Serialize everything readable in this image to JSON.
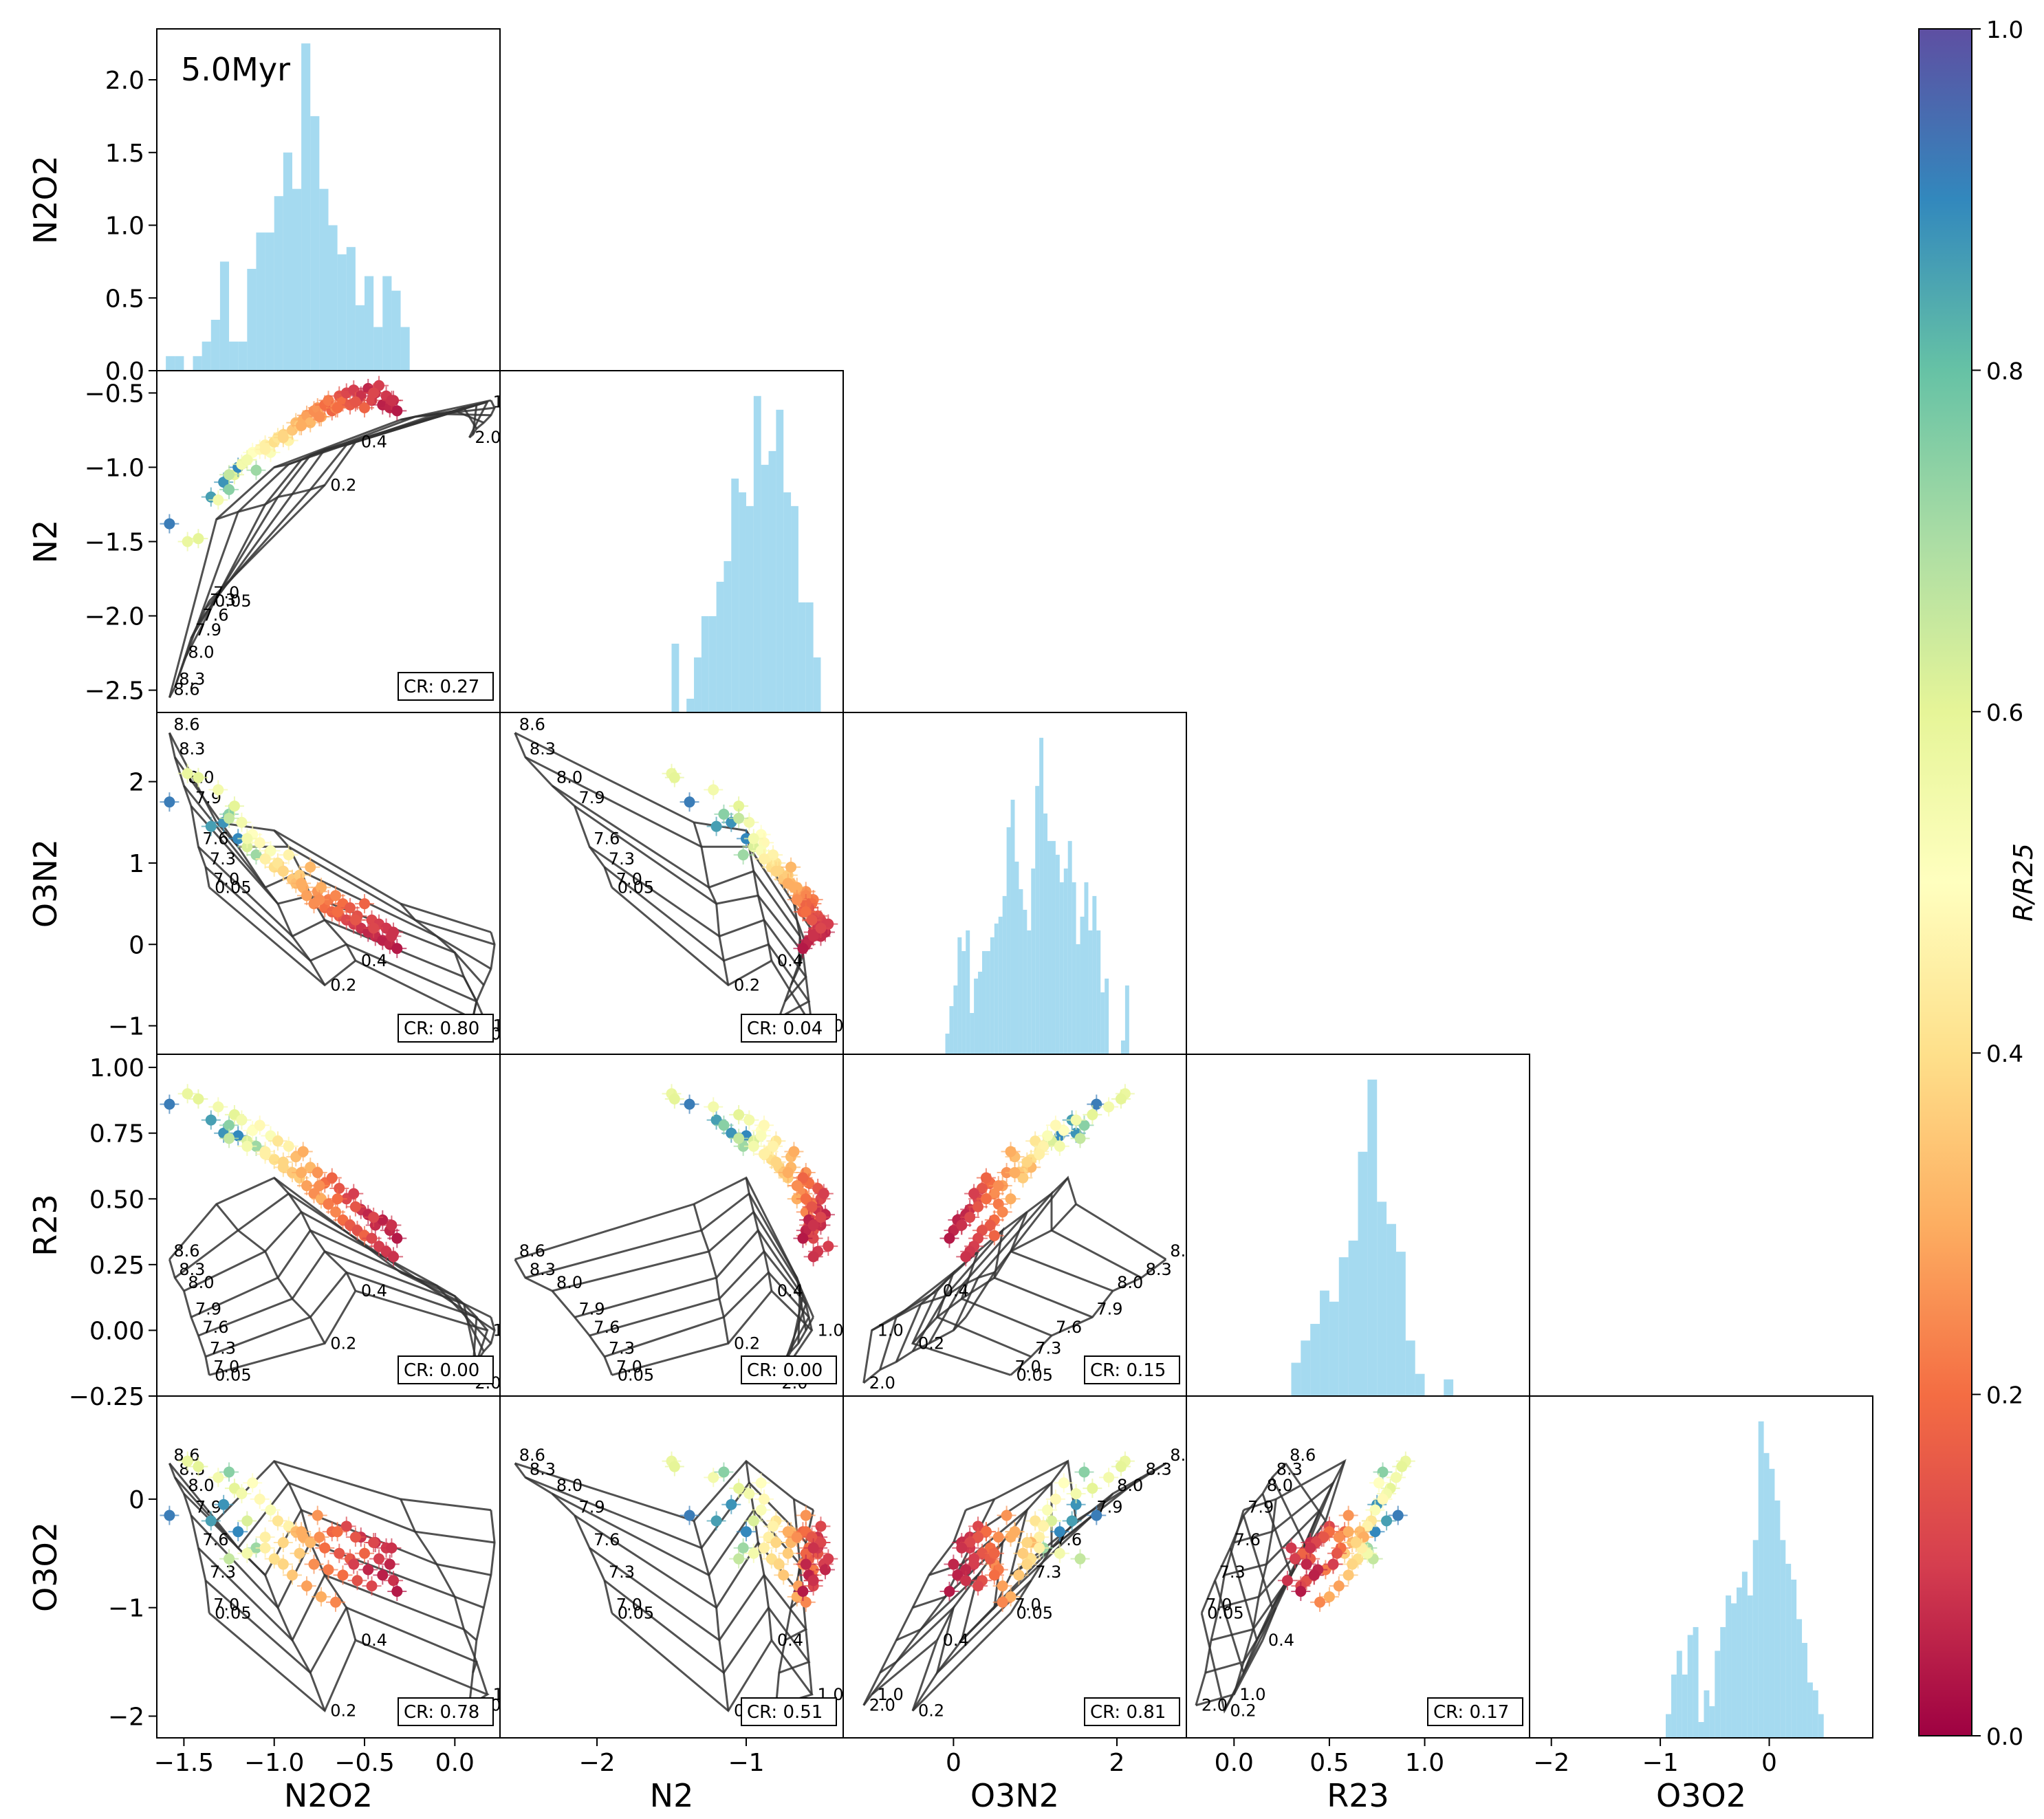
{
  "chart_data": {
    "type": "scatter-matrix",
    "title": "5.0Myr",
    "variables": [
      "N2O2",
      "N2",
      "O3N2",
      "R23",
      "O3O2"
    ],
    "axes": {
      "N2O2": {
        "lim": [
          -1.65,
          0.25
        ],
        "ticks": [
          -1.5,
          -1.0,
          -0.5,
          0.0
        ],
        "tick_labels": [
          "−1.5",
          "−1.0",
          "−0.5",
          "0.0"
        ]
      },
      "N2": {
        "lim": [
          -2.65,
          -0.35
        ],
        "ticks": [
          -2,
          -1
        ],
        "tick_labels": [
          "−2",
          "−1"
        ]
      },
      "O3N2": {
        "lim": [
          -1.35,
          2.85
        ],
        "ticks": [
          0,
          2
        ],
        "tick_labels": [
          "0",
          "2"
        ]
      },
      "R23": {
        "lim": [
          -0.25,
          1.55
        ],
        "ticks": [
          0.0,
          0.5,
          1.0
        ],
        "tick_labels": [
          "0.0",
          "0.5",
          "1.0"
        ]
      },
      "O3O2": {
        "lim": [
          -2.2,
          0.95
        ],
        "ticks": [
          -2,
          -1,
          0
        ],
        "tick_labels": [
          "−2",
          "−1",
          "0"
        ]
      }
    },
    "row_ticks": {
      "N2O2": {
        "lim": [
          0,
          2.35
        ],
        "ticks": [
          0,
          0.5,
          1.0,
          1.5,
          2.0
        ],
        "tick_labels": [
          "0.0",
          "0.5",
          "1.0",
          "1.5",
          "2.0"
        ]
      },
      "N2": {
        "lim": [
          -2.65,
          -0.35
        ],
        "ticks": [
          -2.5,
          -2.0,
          -1.5,
          -1.0,
          -0.5
        ],
        "tick_labels": [
          "−2.5",
          "−2.0",
          "−1.5",
          "−1.0",
          "−0.5"
        ]
      },
      "O3N2": {
        "lim": [
          -1.35,
          2.85
        ],
        "ticks": [
          -1,
          0,
          1,
          2
        ],
        "tick_labels": [
          "−1",
          "0",
          "1",
          "2"
        ]
      },
      "R23": {
        "lim": [
          -0.25,
          1.05
        ],
        "ticks": [
          -0.25,
          0.0,
          0.25,
          0.5,
          0.75,
          1.0
        ],
        "tick_labels": [
          "−0.25",
          "0.00",
          "0.25",
          "0.50",
          "0.75",
          "1.00"
        ]
      },
      "O3O2": {
        "lim": [
          -2.2,
          0.95
        ],
        "ticks": [
          -2,
          -1,
          0
        ],
        "tick_labels": [
          "−2",
          "−1",
          "0"
        ]
      }
    },
    "histograms": [
      {
        "variable": "N2O2",
        "bins": [
          -1.6,
          -1.55,
          -1.5,
          -1.45,
          -1.4,
          -1.35,
          -1.3,
          -1.25,
          -1.2,
          -1.15,
          -1.1,
          -1.05,
          -1.0,
          -0.95,
          -0.9,
          -0.85,
          -0.8,
          -0.75,
          -0.7,
          -0.65,
          -0.6,
          -0.55,
          -0.5,
          -0.45,
          -0.4,
          -0.35,
          -0.3
        ],
        "density": [
          0.1,
          0.1,
          0,
          0.1,
          0.2,
          0.35,
          0.75,
          0.2,
          0.2,
          0.7,
          0.95,
          0.95,
          1.2,
          1.5,
          1.25,
          2.25,
          1.75,
          1.25,
          1.0,
          0.8,
          0.85,
          0.45,
          0.65,
          0.3,
          0.65,
          0.55,
          0.3
        ]
      },
      {
        "variable": "N2",
        "bins": [
          -1.5,
          -1.45,
          -1.4,
          -1.35,
          -1.3,
          -1.25,
          -1.2,
          -1.15,
          -1.1,
          -1.05,
          -1.0,
          -0.95,
          -0.9,
          -0.85,
          -0.8,
          -0.75,
          -0.7,
          -0.65,
          -0.6,
          -0.55
        ],
        "density": [
          0.5,
          0,
          0.1,
          0.4,
          0.7,
          0.7,
          0.95,
          1.1,
          1.7,
          1.6,
          1.5,
          2.3,
          1.8,
          1.9,
          2.2,
          1.6,
          1.5,
          0.8,
          0.8,
          0.4
        ]
      },
      {
        "variable": "O3N2",
        "bins": [
          -0.1,
          -0.05,
          0.0,
          0.05,
          0.1,
          0.15,
          0.2,
          0.25,
          0.3,
          0.35,
          0.4,
          0.45,
          0.5,
          0.55,
          0.6,
          0.65,
          0.7,
          0.75,
          0.8,
          0.85,
          0.9,
          0.95,
          1.0,
          1.05,
          1.1,
          1.15,
          1.2,
          1.25,
          1.3,
          1.35,
          1.4,
          1.45,
          1.5,
          1.55,
          1.6,
          1.65,
          1.7,
          1.75,
          1.8,
          1.85,
          1.9,
          1.95,
          2.0,
          2.05,
          2.1
        ],
        "density": [
          0.15,
          0.35,
          0.5,
          0.85,
          0.75,
          0.9,
          0.3,
          0.55,
          0.6,
          0.75,
          0.75,
          0.85,
          0.95,
          1.0,
          1.15,
          1.65,
          1.85,
          1.4,
          1.2,
          1.05,
          0.9,
          1.35,
          1.95,
          2.3,
          1.75,
          1.55,
          1.55,
          1.45,
          1.25,
          1.35,
          1.55,
          1.25,
          0.8,
          1.0,
          1.25,
          0.9,
          1.15,
          0.9,
          0.45,
          0.55,
          0.0,
          0.0,
          0.0,
          0.1,
          0.5
        ]
      },
      {
        "variable": "R23",
        "bins": [
          0.3,
          0.35,
          0.4,
          0.45,
          0.5,
          0.55,
          0.6,
          0.65,
          0.7,
          0.75,
          0.8,
          0.85,
          0.9,
          0.95,
          1.0,
          1.05,
          1.1,
          1.15,
          1.2
        ],
        "density": [
          0.3,
          0.5,
          0.65,
          0.95,
          0.85,
          1.25,
          1.4,
          2.2,
          2.85,
          1.75,
          1.55,
          1.3,
          0.5,
          0.2,
          0.0,
          0.0,
          0.15,
          0.0,
          0.0
        ]
      },
      {
        "variable": "O3O2",
        "bins": [
          -0.95,
          -0.9,
          -0.85,
          -0.8,
          -0.75,
          -0.7,
          -0.65,
          -0.6,
          -0.55,
          -0.5,
          -0.45,
          -0.4,
          -0.35,
          -0.3,
          -0.25,
          -0.2,
          -0.15,
          -0.1,
          -0.05,
          0.0,
          0.05,
          0.1,
          0.15,
          0.2,
          0.25,
          0.3,
          0.35,
          0.4,
          0.45
        ],
        "density": [
          0.15,
          0.4,
          0.55,
          0.4,
          0.65,
          0.7,
          0.1,
          0.3,
          0.2,
          0.55,
          0.7,
          0.9,
          0.85,
          0.95,
          1.05,
          0.9,
          1.25,
          2.0,
          1.8,
          1.7,
          1.5,
          1.25,
          1.1,
          1.0,
          0.75,
          0.6,
          0.35,
          0.3,
          0.15
        ]
      }
    ],
    "scatter_panels": [
      {
        "x": "N2O2",
        "y": "N2",
        "cr_label": "CR: 0.27"
      },
      {
        "x": "N2O2",
        "y": "O3N2",
        "cr_label": "CR: 0.80"
      },
      {
        "x": "N2",
        "y": "O3N2",
        "cr_label": "CR: 0.04"
      },
      {
        "x": "N2O2",
        "y": "R23",
        "cr_label": "CR: 0.00"
      },
      {
        "x": "N2",
        "y": "R23",
        "cr_label": "CR: 0.00"
      },
      {
        "x": "O3N2",
        "y": "R23",
        "cr_label": "CR: 0.15"
      },
      {
        "x": "N2O2",
        "y": "O3O2",
        "cr_label": "CR: 0.78"
      },
      {
        "x": "N2",
        "y": "O3O2",
        "cr_label": "CR: 0.51"
      },
      {
        "x": "O3N2",
        "y": "O3O2",
        "cr_label": "CR: 0.81"
      },
      {
        "x": "R23",
        "y": "O3O2",
        "cr_label": "CR: 0.17"
      }
    ],
    "grid_labels": {
      "metallicity": [
        "8.6",
        "8.3",
        "8.0",
        "7.9",
        "7.6",
        "7.3",
        "7.0"
      ],
      "ionization": [
        "0.05",
        "0.2",
        "0.4",
        "1.0",
        "2.0"
      ]
    },
    "grid_metallicities": [
      8.6,
      8.3,
      8.0,
      7.9,
      7.6,
      7.3,
      7.0
    ],
    "grid_ionization": [
      0.05,
      0.2,
      0.4,
      1.0,
      2.0
    ],
    "model_grid": {
      "N2O2": [
        [
          -1.58,
          -1.55,
          -1.5,
          -1.46,
          -1.42,
          -1.38,
          -1.36
        ],
        [
          -1.32,
          -1.2,
          -1.05,
          -0.98,
          -0.9,
          -0.8,
          -0.72
        ],
        [
          -1.0,
          -0.92,
          -0.85,
          -0.8,
          -0.72,
          -0.6,
          -0.55
        ],
        [
          -0.3,
          -0.22,
          -0.1,
          0.0,
          0.05,
          0.12,
          0.18
        ],
        [
          0.2,
          0.22,
          0.2,
          0.16,
          0.12,
          0.1,
          0.08
        ]
      ],
      "N2": [
        [
          -2.55,
          -2.48,
          -2.3,
          -2.15,
          -2.05,
          -1.95,
          -1.9
        ],
        [
          -1.35,
          -1.3,
          -1.25,
          -1.2,
          -1.18,
          -1.15,
          -1.12
        ],
        [
          -1.0,
          -0.98,
          -0.95,
          -0.92,
          -0.88,
          -0.85,
          -0.83
        ],
        [
          -0.68,
          -0.66,
          -0.64,
          -0.62,
          -0.6,
          -0.58,
          -0.56
        ],
        [
          -0.55,
          -0.6,
          -0.65,
          -0.7,
          -0.74,
          -0.78,
          -0.8
        ]
      ],
      "O3N2": [
        [
          2.6,
          2.3,
          1.95,
          1.7,
          1.2,
          0.95,
          0.7
        ],
        [
          1.5,
          1.2,
          0.7,
          0.5,
          0.1,
          -0.2,
          -0.5
        ],
        [
          1.4,
          1.2,
          0.9,
          0.6,
          0.3,
          0.0,
          -0.2
        ],
        [
          0.5,
          0.3,
          0.1,
          -0.1,
          -0.4,
          -0.7,
          -1.0
        ],
        [
          0.15,
          0.0,
          -0.3,
          -0.5,
          -0.7,
          -0.9,
          -1.1
        ]
      ],
      "R23": [
        [
          0.27,
          0.2,
          0.15,
          0.05,
          -0.02,
          -0.1,
          -0.17
        ],
        [
          0.48,
          0.38,
          0.3,
          0.2,
          0.12,
          0.05,
          -0.05
        ],
        [
          0.58,
          0.52,
          0.45,
          0.38,
          0.3,
          0.22,
          0.15
        ],
        [
          0.22,
          0.2,
          0.17,
          0.13,
          0.1,
          0.05,
          0.0
        ],
        [
          0.05,
          0.0,
          -0.05,
          -0.08,
          -0.12,
          -0.15,
          -0.2
        ]
      ],
      "O3O2": [
        [
          0.33,
          0.2,
          0.05,
          -0.15,
          -0.45,
          -0.75,
          -1.05
        ],
        [
          -0.2,
          -0.45,
          -0.7,
          -1.0,
          -1.3,
          -1.6,
          -1.95
        ],
        [
          0.35,
          0.15,
          -0.1,
          -0.4,
          -0.7,
          -1.0,
          -1.3
        ],
        [
          0.0,
          -0.3,
          -0.6,
          -0.9,
          -1.2,
          -1.5,
          -1.8
        ],
        [
          -0.1,
          -0.4,
          -0.7,
          -1.0,
          -1.3,
          -1.6,
          -1.9
        ]
      ]
    },
    "observations": {
      "N2O2": [
        -1.58,
        -1.48,
        -1.42,
        -1.35,
        -1.31,
        -1.28,
        -1.25,
        -1.22,
        -1.2,
        -1.18,
        -1.15,
        -1.12,
        -1.1,
        -1.08,
        -1.05,
        -1.02,
        -1.0,
        -0.98,
        -0.95,
        -0.92,
        -0.9,
        -0.88,
        -0.86,
        -0.84,
        -0.82,
        -0.8,
        -0.78,
        -0.76,
        -0.74,
        -0.72,
        -0.7,
        -0.68,
        -0.66,
        -0.64,
        -0.62,
        -0.6,
        -0.58,
        -0.56,
        -0.54,
        -0.52,
        -0.5,
        -0.48,
        -0.46,
        -0.44,
        -0.42,
        -0.4,
        -0.38,
        -0.36,
        -0.34,
        -0.32,
        -1.25,
        -1.15,
        -1.05,
        -0.95,
        -0.85,
        -0.75,
        -0.65,
        -0.55,
        -0.45,
        -0.35
      ],
      "N2": [
        -1.38,
        -1.5,
        -1.48,
        -1.2,
        -1.22,
        -1.1,
        -1.15,
        -1.05,
        -1.0,
        -0.98,
        -0.95,
        -0.9,
        -1.02,
        -0.88,
        -0.85,
        -0.9,
        -0.83,
        -0.8,
        -0.78,
        -0.82,
        -0.75,
        -0.7,
        -0.72,
        -0.68,
        -0.65,
        -0.7,
        -0.62,
        -0.6,
        -0.66,
        -0.58,
        -0.55,
        -0.62,
        -0.6,
        -0.52,
        -0.56,
        -0.5,
        -0.58,
        -0.48,
        -0.55,
        -0.52,
        -0.6,
        -0.47,
        -0.55,
        -0.5,
        -0.45,
        -0.58,
        -0.52,
        -0.6,
        -0.55,
        -0.62,
        -1.05,
        -0.95,
        -0.88,
        -0.8,
        -0.72,
        -0.66,
        -0.6,
        -0.56,
        -0.5,
        -0.55
      ],
      "O3N2": [
        1.75,
        2.1,
        2.05,
        1.45,
        1.9,
        1.5,
        1.6,
        1.7,
        1.3,
        1.5,
        1.2,
        1.35,
        1.1,
        1.25,
        1.05,
        1.15,
        0.95,
        1.0,
        0.9,
        1.1,
        0.8,
        0.75,
        0.85,
        0.7,
        0.6,
        0.95,
        0.5,
        0.65,
        0.7,
        0.45,
        0.55,
        0.4,
        0.6,
        0.35,
        0.5,
        0.3,
        0.45,
        0.25,
        0.35,
        0.2,
        0.5,
        0.15,
        0.3,
        0.1,
        0.25,
        0.05,
        0.2,
        0.0,
        0.15,
        -0.05,
        1.55,
        1.3,
        1.05,
        0.9,
        0.75,
        0.55,
        0.4,
        0.3,
        0.2,
        0.1
      ],
      "R23": [
        0.86,
        0.9,
        0.88,
        0.8,
        0.85,
        0.75,
        0.78,
        0.82,
        0.74,
        0.8,
        0.72,
        0.76,
        0.7,
        0.78,
        0.68,
        0.74,
        0.65,
        0.72,
        0.62,
        0.7,
        0.6,
        0.66,
        0.58,
        0.68,
        0.55,
        0.62,
        0.52,
        0.6,
        0.5,
        0.56,
        0.48,
        0.58,
        0.45,
        0.54,
        0.42,
        0.5,
        0.4,
        0.52,
        0.38,
        0.46,
        0.36,
        0.44,
        0.35,
        0.4,
        0.32,
        0.42,
        0.3,
        0.38,
        0.28,
        0.35,
        0.73,
        0.7,
        0.67,
        0.64,
        0.6,
        0.55,
        0.5,
        0.47,
        0.43,
        0.4
      ],
      "O3O2": [
        -0.15,
        0.35,
        0.3,
        -0.2,
        0.2,
        -0.05,
        0.25,
        0.1,
        -0.3,
        0.05,
        -0.2,
        0.15,
        -0.45,
        0.0,
        -0.35,
        -0.1,
        -0.55,
        -0.2,
        -0.6,
        -0.25,
        -0.7,
        -0.3,
        -0.5,
        -0.35,
        -0.8,
        -0.4,
        -0.6,
        -0.15,
        -0.9,
        -0.45,
        -0.65,
        -0.3,
        -0.95,
        -0.5,
        -0.7,
        -0.25,
        -0.55,
        -0.6,
        -0.75,
        -0.35,
        -0.5,
        -0.65,
        -0.8,
        -0.4,
        -0.55,
        -0.7,
        -0.45,
        -0.6,
        -0.75,
        -0.85,
        -0.55,
        -0.5,
        -0.45,
        -0.4,
        -0.3,
        -0.35,
        -0.3,
        -0.35,
        -0.4,
        -0.45
      ],
      "R_over_R25": [
        0.92,
        0.58,
        0.6,
        0.86,
        0.55,
        0.88,
        0.75,
        0.6,
        0.9,
        0.55,
        0.62,
        0.5,
        0.72,
        0.48,
        0.45,
        0.52,
        0.4,
        0.42,
        0.38,
        0.46,
        0.35,
        0.33,
        0.36,
        0.3,
        0.28,
        0.32,
        0.25,
        0.26,
        0.3,
        0.2,
        0.22,
        0.18,
        0.24,
        0.15,
        0.2,
        0.12,
        0.16,
        0.1,
        0.14,
        0.08,
        0.18,
        0.06,
        0.12,
        0.07,
        0.1,
        0.05,
        0.09,
        0.06,
        0.08,
        0.04,
        0.66,
        0.55,
        0.45,
        0.38,
        0.3,
        0.25,
        0.2,
        0.15,
        0.12,
        0.08
      ]
    },
    "colorbar": {
      "label": "R/R25",
      "lim": [
        0.0,
        1.0
      ],
      "ticks": [
        0.0,
        0.2,
        0.4,
        0.6,
        0.8,
        1.0
      ],
      "tick_labels": [
        "0.0",
        "0.2",
        "0.4",
        "0.6",
        "0.8",
        "1.0"
      ],
      "colormap": "Spectral",
      "stops": [
        "#9e0142",
        "#d53e4f",
        "#f46d43",
        "#fdae61",
        "#fee08b",
        "#ffffbf",
        "#e6f598",
        "#abdda4",
        "#66c2a5",
        "#3288bd",
        "#5e4fa2"
      ]
    },
    "colors": {
      "hist": "#87ceeb",
      "grid": "#333333",
      "axes": "#000000"
    }
  }
}
